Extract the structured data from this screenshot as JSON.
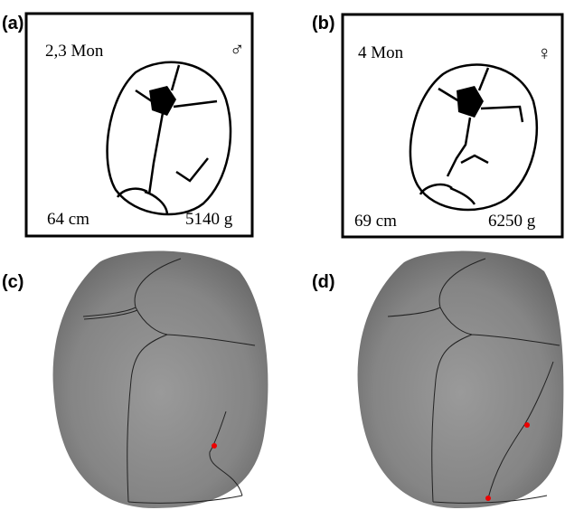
{
  "panels": [
    {
      "label": "(a)",
      "age": "2,3 Mon",
      "sex": "♂",
      "length": "64 cm",
      "weight": "5140 g"
    },
    {
      "label": "(b)",
      "age": "4 Mon",
      "sex": "♀",
      "length": "69 cm",
      "weight": "6250 g"
    },
    {
      "label": "(c)"
    },
    {
      "label": "(d)"
    }
  ]
}
